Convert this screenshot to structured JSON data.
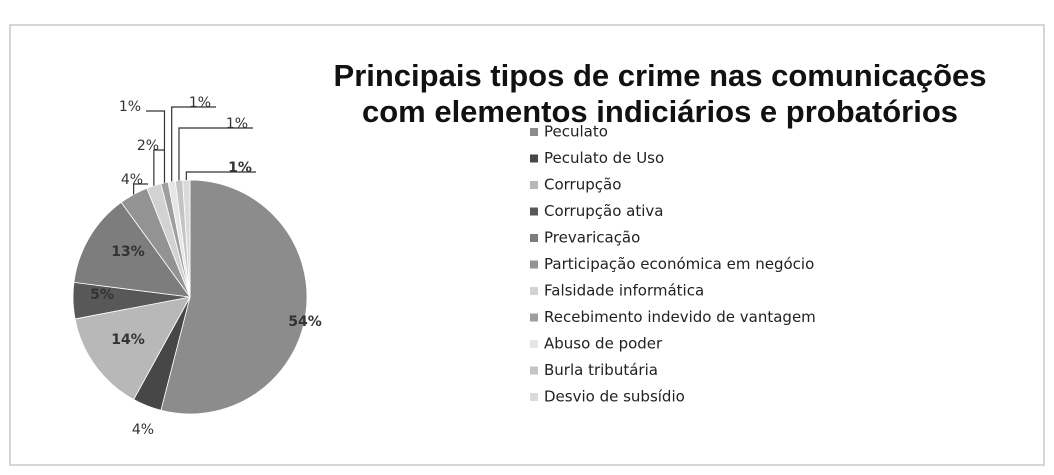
{
  "chart_data": {
    "type": "pie",
    "title": [
      "Principais tipos de crime nas comunicações",
      "com elementos indiciários e probatórios"
    ],
    "categories": [
      "Peculato",
      "Peculato de Uso",
      "Corrupção",
      "Corrupção ativa",
      "Prevaricação",
      "Participação económica em negócio",
      "Falsidade informática",
      "Recebimento indevido de vantagem",
      "Abuso de poder",
      "Burla tributária",
      "Desvio de subsídio"
    ],
    "values": [
      54,
      4,
      14,
      5,
      13,
      4,
      2,
      1,
      1,
      1,
      1
    ],
    "value_labels": [
      "54%",
      "4%",
      "14%",
      "5%",
      "13%",
      "4%",
      "2%",
      "1%",
      "1%",
      "1%",
      "1%"
    ],
    "colors": [
      "#8c8c8c",
      "#474747",
      "#b8b8b8",
      "#585858",
      "#7d7d7d",
      "#939393",
      "#d2d2d2",
      "#9e9e9e",
      "#e6e6e6",
      "#c4c4c4",
      "#dadada"
    ],
    "legend": "right"
  }
}
